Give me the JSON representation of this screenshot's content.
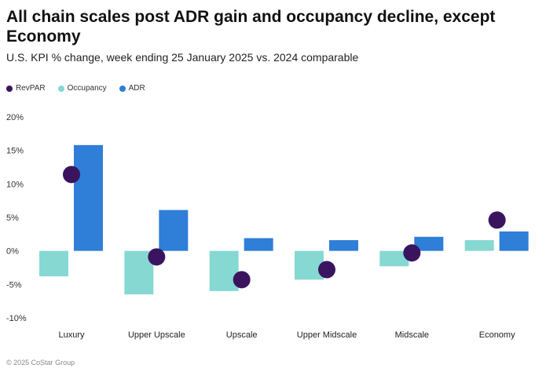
{
  "chart_data": {
    "type": "bar",
    "title": "All chain scales post ADR gain and occupancy decline, except Economy",
    "subtitle": "U.S. KPI % change, week ending 25 January 2025 vs. 2024 comparable",
    "categories": [
      "Luxury",
      "Upper Upscale",
      "Upscale",
      "Upper Midscale",
      "Midscale",
      "Economy"
    ],
    "series": [
      {
        "name": "RevPAR",
        "marker": "dot",
        "color": "#3b1460",
        "values": [
          11.4,
          -0.9,
          -4.3,
          -2.8,
          -0.3,
          4.6
        ]
      },
      {
        "name": "Occupancy",
        "marker": "bar",
        "color": "#86d8d2",
        "values": [
          -3.8,
          -6.5,
          -6.0,
          -4.3,
          -2.3,
          1.6
        ]
      },
      {
        "name": "ADR",
        "marker": "bar",
        "color": "#2f7ed8",
        "values": [
          15.8,
          6.1,
          1.9,
          1.6,
          2.1,
          2.9
        ]
      }
    ],
    "yticks": [
      "20%",
      "15%",
      "10%",
      "5%",
      "0%",
      "-5%",
      "-10%"
    ],
    "ylim": [
      -10,
      20
    ],
    "xlabel": "",
    "ylabel": "",
    "grid": false,
    "legend_position": "top-left"
  },
  "footer": "© 2025 CoStar Group"
}
